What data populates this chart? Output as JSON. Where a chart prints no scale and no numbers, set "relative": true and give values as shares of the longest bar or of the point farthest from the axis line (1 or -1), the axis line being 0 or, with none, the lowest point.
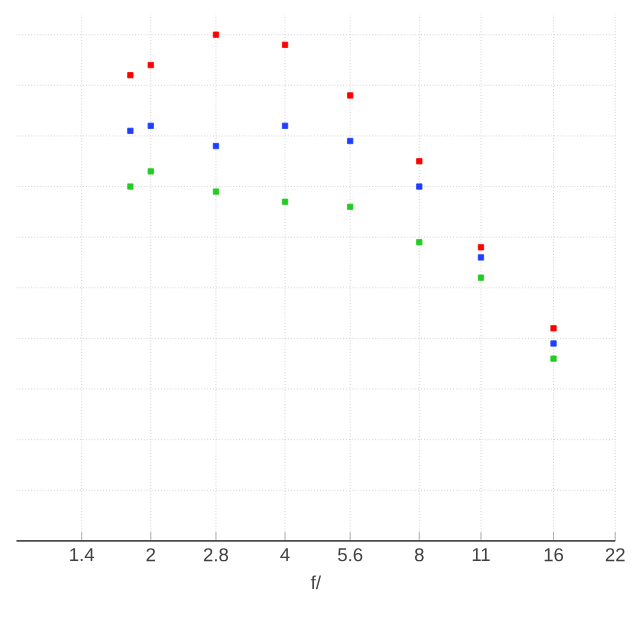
{
  "chart_data": {
    "type": "scatter",
    "xlabel": "f/",
    "log": "x",
    "relative": true,
    "grid": true,
    "marker": "square",
    "x": [
      1.8,
      2,
      2.8,
      4,
      5.6,
      8,
      11,
      16
    ],
    "xlim": [
      1,
      22
    ],
    "xticks": [
      1.4,
      2,
      2.8,
      4,
      5.6,
      8,
      11,
      16,
      22
    ],
    "series": [
      {
        "color": "#ff0000",
        "values": [
          0.92,
          0.94,
          1.0,
          0.98,
          0.88,
          0.75,
          0.58,
          0.42
        ]
      },
      {
        "color": "#1f3fff",
        "values": [
          0.81,
          0.82,
          0.78,
          0.82,
          0.79,
          0.7,
          0.56,
          0.39
        ]
      },
      {
        "color": "#22cc22",
        "values": [
          0.7,
          0.73,
          0.69,
          0.67,
          0.66,
          0.59,
          0.52,
          0.36
        ]
      }
    ]
  }
}
